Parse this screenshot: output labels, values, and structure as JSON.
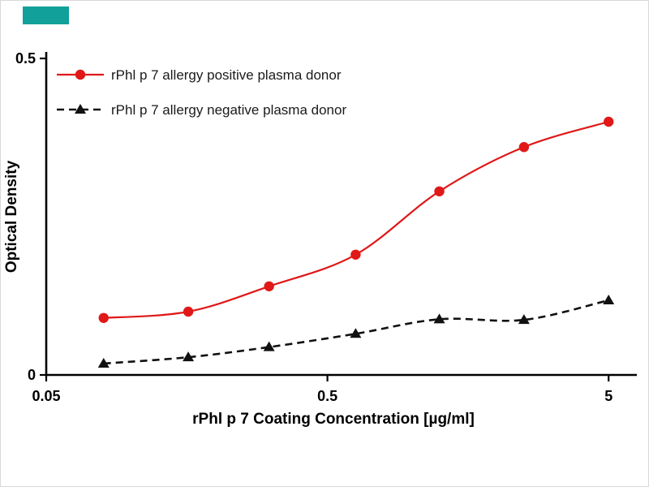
{
  "brand": {
    "color": "#12a09b"
  },
  "chart_data": {
    "type": "line",
    "title": "",
    "xlabel": "rPhl p 7 Coating Concentration [µg/ml]",
    "ylabel": "Optical Density",
    "x_scale": "log",
    "xlim": [
      0.05,
      6.3
    ],
    "ylim": [
      0,
      0.5
    ],
    "grid": false,
    "legend_position": "top-left",
    "x_ticks": [
      {
        "value": 0.05,
        "label": "0.05"
      },
      {
        "value": 0.5,
        "label": "0.5"
      },
      {
        "value": 5,
        "label": "5"
      }
    ],
    "y_ticks": [
      {
        "value": 0,
        "label": "0"
      },
      {
        "value": 0.5,
        "label": "0.5"
      }
    ],
    "x": [
      0.08,
      0.16,
      0.31,
      0.63,
      1.25,
      2.5,
      5
    ],
    "series": [
      {
        "name": "rPhl p 7 allergy positive plasma donor",
        "color": "#e01818",
        "marker": "circle",
        "line": "solid",
        "values": [
          0.09,
          0.1,
          0.14,
          0.19,
          0.29,
          0.36,
          0.4
        ]
      },
      {
        "name": "rPhl p 7 allergy negative plasma donor",
        "color": "#111111",
        "marker": "triangle",
        "line": "dashed",
        "values": [
          0.018,
          0.028,
          0.044,
          0.065,
          0.088,
          0.087,
          0.118
        ]
      }
    ]
  }
}
